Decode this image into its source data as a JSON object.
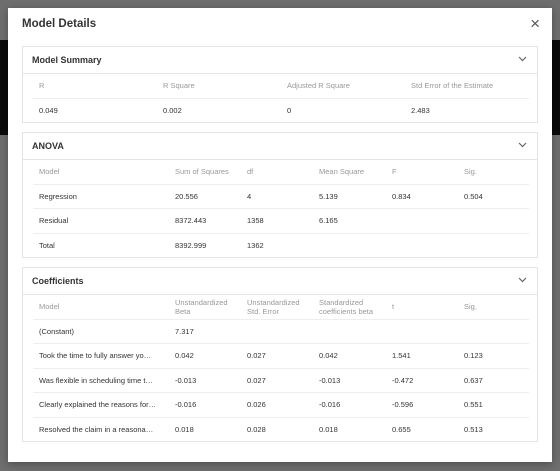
{
  "modal": {
    "title": "Model Details",
    "close": "×"
  },
  "sections": [
    {
      "title": "Model Summary",
      "columns": [
        "R",
        "R Square",
        "Adjusted R Square",
        "Std Error of the Estimate"
      ],
      "rows": [
        [
          "0.049",
          "0.002",
          "0",
          "2.483"
        ]
      ]
    },
    {
      "title": "ANOVA",
      "columns": [
        "Model",
        "Sum of Squares",
        "df",
        "Mean Square",
        "F",
        "Sig."
      ],
      "rows": [
        [
          "Regression",
          "20.556",
          "4",
          "5.139",
          "0.834",
          "0.504"
        ],
        [
          "Residual",
          "8372.443",
          "1358",
          "6.165"
        ],
        [
          "Total",
          "8392.999",
          "1362"
        ]
      ]
    },
    {
      "title": "Coefficients",
      "columns": [
        "Model",
        "Unstandardized Beta",
        "Unstandardized Std. Error",
        "Standardized coefficients beta",
        "t",
        "Sig."
      ],
      "rows": [
        [
          "(Constant)",
          "7.317"
        ],
        [
          "Took the time to fully answer yo…",
          "0.042",
          "0.027",
          "0.042",
          "1.541",
          "0.123"
        ],
        [
          "Was flexible in scheduling time t…",
          "-0.013",
          "0.027",
          "-0.013",
          "-0.472",
          "0.637"
        ],
        [
          "Clearly explained the reasons for…",
          "-0.016",
          "0.026",
          "-0.016",
          "-0.596",
          "0.551"
        ],
        [
          "Resolved the claim in a reasona…",
          "0.018",
          "0.028",
          "0.018",
          "0.655",
          "0.513"
        ]
      ]
    }
  ]
}
